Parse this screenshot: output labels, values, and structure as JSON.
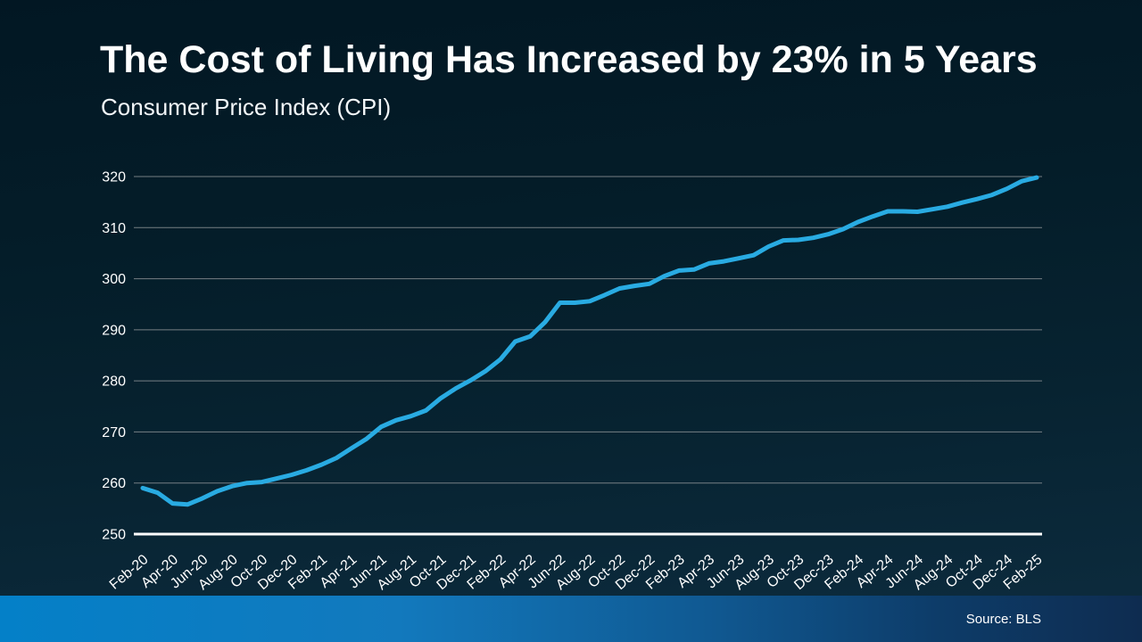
{
  "header": {
    "title": "The Cost of Living Has Increased by 23% in 5 Years",
    "subtitle": "Consumer Price Index (CPI)"
  },
  "footer": {
    "source": "Source: BLS"
  },
  "colors": {
    "background_top": "#021723",
    "background_bottom": "#0d2c3f",
    "line": "#29abe2",
    "gridline": "#8a9094",
    "axis": "#ffffff",
    "text": "#ffffff",
    "footer_bar_left": "#0480c8",
    "footer_bar_right": "#0e2c50"
  },
  "chart_data": {
    "type": "line",
    "title": "The Cost of Living Has Increased by 23% in 5 Years",
    "subtitle": "Consumer Price Index (CPI)",
    "series_name": "Consumer Price Index (CPI)",
    "xlabel": "",
    "ylabel": "",
    "ylim": [
      250,
      320
    ],
    "y_ticks": [
      250,
      260,
      270,
      280,
      290,
      300,
      310,
      320
    ],
    "grid": true,
    "legend": false,
    "x": [
      "Feb-20",
      "Mar-20",
      "Apr-20",
      "May-20",
      "Jun-20",
      "Jul-20",
      "Aug-20",
      "Sep-20",
      "Oct-20",
      "Nov-20",
      "Dec-20",
      "Jan-21",
      "Feb-21",
      "Mar-21",
      "Apr-21",
      "May-21",
      "Jun-21",
      "Jul-21",
      "Aug-21",
      "Sep-21",
      "Oct-21",
      "Nov-21",
      "Dec-21",
      "Jan-22",
      "Feb-22",
      "Mar-22",
      "Apr-22",
      "May-22",
      "Jun-22",
      "Jul-22",
      "Aug-22",
      "Sep-22",
      "Oct-22",
      "Nov-22",
      "Dec-22",
      "Jan-23",
      "Feb-23",
      "Mar-23",
      "Apr-23",
      "May-23",
      "Jun-23",
      "Jul-23",
      "Aug-23",
      "Sep-23",
      "Oct-23",
      "Nov-23",
      "Dec-23",
      "Jan-24",
      "Feb-24",
      "Mar-24",
      "Apr-24",
      "May-24",
      "Jun-24",
      "Jul-24",
      "Aug-24",
      "Sep-24",
      "Oct-24",
      "Nov-24",
      "Dec-24",
      "Jan-25",
      "Feb-25"
    ],
    "values": [
      259.0,
      258.1,
      256.0,
      255.8,
      257.0,
      258.4,
      259.4,
      260.0,
      260.2,
      260.9,
      261.6,
      262.5,
      263.6,
      264.9,
      266.8,
      268.6,
      271.0,
      272.3,
      273.1,
      274.2,
      276.6,
      278.5,
      280.1,
      281.9,
      284.2,
      287.7,
      288.7,
      291.5,
      295.3,
      295.3,
      295.6,
      296.8,
      298.1,
      298.6,
      299.0,
      300.5,
      301.6,
      301.8,
      303.0,
      303.4,
      304.0,
      304.6,
      306.3,
      307.5,
      307.6,
      308.0,
      308.7,
      309.7,
      311.1,
      312.2,
      313.2,
      313.2,
      313.1,
      313.6,
      314.1,
      314.9,
      315.6,
      316.4,
      317.6,
      319.1,
      319.8
    ],
    "x_tick_labels": [
      "Feb-20",
      "Apr-20",
      "Jun-20",
      "Aug-20",
      "Oct-20",
      "Dec-20",
      "Feb-21",
      "Apr-21",
      "Jun-21",
      "Aug-21",
      "Oct-21",
      "Dec-21",
      "Feb-22",
      "Apr-22",
      "Jun-22",
      "Aug-22",
      "Oct-22",
      "Dec-22",
      "Feb-23",
      "Apr-23",
      "Jun-23",
      "Aug-23",
      "Oct-23",
      "Dec-23",
      "Feb-24",
      "Apr-24",
      "Jun-24",
      "Aug-24",
      "Oct-24",
      "Dec-24",
      "Feb-25"
    ],
    "x_tick_step": 2
  }
}
